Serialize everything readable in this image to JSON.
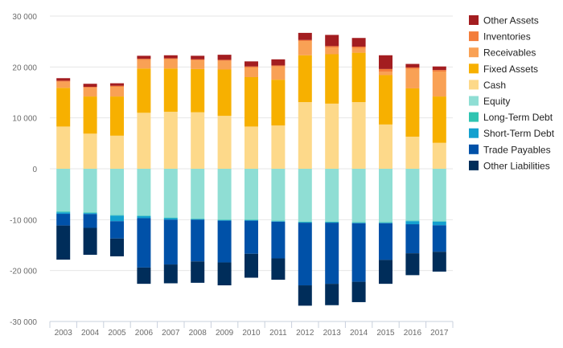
{
  "chart_data": {
    "type": "bar",
    "stacked": true,
    "categories": [
      "2003",
      "2004",
      "2005",
      "2006",
      "2007",
      "2008",
      "2009",
      "2010",
      "2011",
      "2012",
      "2013",
      "2014",
      "2015",
      "2016",
      "2017"
    ],
    "ylim": [
      -30000,
      30000
    ],
    "yticks": [
      30000,
      20000,
      10000,
      0,
      -10000,
      -20000,
      -30000
    ],
    "ytick_labels": [
      "30 000",
      "20 000",
      "10 000",
      "0",
      "-10 000",
      "-20 000",
      "-30 000"
    ],
    "grid": true,
    "legend_position": "right",
    "positive_series": [
      {
        "name": "Cash",
        "color": "#fdd98a",
        "values": [
          8300,
          6900,
          6500,
          11000,
          11200,
          11100,
          10400,
          8300,
          8500,
          13100,
          12800,
          13100,
          8700,
          6300,
          5100
        ]
      },
      {
        "name": "Fixed Assets",
        "color": "#f7b000",
        "values": [
          7600,
          7300,
          7700,
          8700,
          8500,
          8500,
          9100,
          9700,
          9000,
          9200,
          9700,
          9700,
          9700,
          9500,
          9100
        ]
      },
      {
        "name": "Receivables",
        "color": "#f9a155",
        "values": [
          1200,
          1700,
          1900,
          1700,
          1800,
          1700,
          1700,
          1900,
          2600,
          2800,
          1300,
          900,
          700,
          3800,
          4900
        ]
      },
      {
        "name": "Inventories",
        "color": "#f37d3b",
        "values": [
          200,
          200,
          200,
          200,
          200,
          200,
          200,
          200,
          200,
          200,
          300,
          300,
          500,
          300,
          300
        ]
      },
      {
        "name": "Other Assets",
        "color": "#a31d20",
        "values": [
          500,
          600,
          500,
          600,
          600,
          700,
          1000,
          1000,
          1200,
          1400,
          2200,
          1700,
          2700,
          700,
          700
        ]
      }
    ],
    "negative_series": [
      {
        "name": "Equity",
        "color": "#8fded4",
        "values": [
          -8400,
          -8600,
          -9100,
          -9200,
          -9600,
          -9800,
          -10000,
          -10000,
          -10200,
          -10400,
          -10400,
          -10500,
          -10500,
          -10200,
          -10300
        ]
      },
      {
        "name": "Long-Term Debt",
        "color": "#2fc4b1",
        "values": [
          -150,
          -100,
          -100,
          -100,
          -100,
          -100,
          -100,
          -100,
          -100,
          -100,
          -100,
          -100,
          -100,
          -100,
          -100
        ]
      },
      {
        "name": "Short-Term Debt",
        "color": "#13a0cf",
        "values": [
          -300,
          -200,
          -1100,
          -400,
          -300,
          -100,
          -100,
          -100,
          -100,
          -100,
          -100,
          -100,
          -100,
          -600,
          -700
        ]
      },
      {
        "name": "Trade Payables",
        "color": "#0051a8",
        "values": [
          -2300,
          -2700,
          -3400,
          -9700,
          -8800,
          -8200,
          -8200,
          -6500,
          -7200,
          -12300,
          -12000,
          -11500,
          -7200,
          -5700,
          -5200
        ]
      },
      {
        "name": "Other Liabilities",
        "color": "#002d5a",
        "values": [
          -6700,
          -5300,
          -3500,
          -3200,
          -3700,
          -4200,
          -4500,
          -4700,
          -4200,
          -4000,
          -4200,
          -4000,
          -4700,
          -4300,
          -3900
        ]
      }
    ],
    "legend": [
      "Other Assets",
      "Inventories",
      "Receivables",
      "Fixed Assets",
      "Cash",
      "Equity",
      "Long-Term Debt",
      "Short-Term Debt",
      "Trade Payables",
      "Other Liabilities"
    ]
  }
}
